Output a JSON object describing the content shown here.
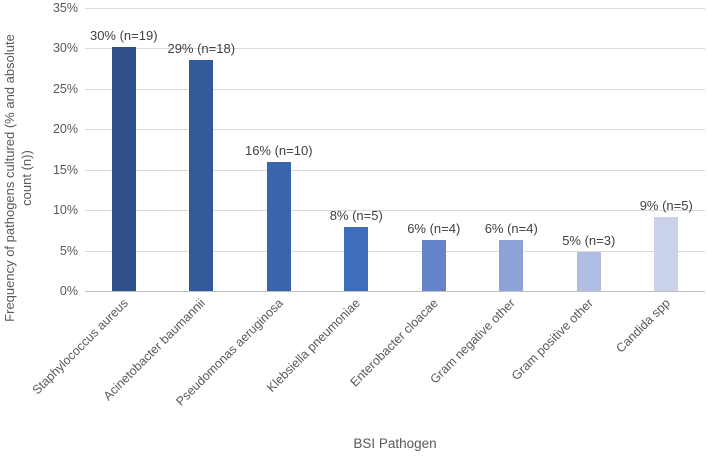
{
  "figure": {
    "y_axis_title_line1": "Frequency of pathogens cultured (% and absolute",
    "y_axis_title_line2": "count (n))",
    "x_axis_title": "BSI Pathogen"
  },
  "chart_data": {
    "type": "bar",
    "title": "",
    "xlabel": "BSI Pathogen",
    "ylabel": "Frequency of pathogens cultured (% and absolute count (n))",
    "ylim": [
      0,
      35
    ],
    "y_tick_interval": 5,
    "y_tick_labels": [
      "35%",
      "30%",
      "25%",
      "20%",
      "15%",
      "10%",
      "5%",
      "0%"
    ],
    "grid": "horizontal",
    "legend": "none",
    "categories": [
      "Staphylococcus aureus",
      "Acinetobacter baumannii",
      "Pseudomonas aeruginosa",
      "Klebsiella pneumoniae",
      "Enterobacter cloacae",
      "Gram negative other",
      "Gram positive other",
      "Candida spp"
    ],
    "values": [
      30.2,
      28.6,
      15.9,
      7.9,
      6.3,
      6.3,
      4.8,
      9.1
    ],
    "counts": [
      19,
      18,
      10,
      5,
      4,
      4,
      3,
      5
    ],
    "data_labels": [
      "30% (n=19)",
      "29% (n=18)",
      "16% (n=10)",
      "8% (n=5)",
      "6% (n=4)",
      "6% (n=4)",
      "5% (n=3)",
      "9% (n=5)"
    ],
    "bar_colors": [
      "#2e4f87",
      "#33599b",
      "#3a64ab",
      "#3f6dbd",
      "#6583ca",
      "#8fa2d8",
      "#b2bde3",
      "#c9d1eb"
    ],
    "gridline_color": "#d9d9d9",
    "axis_line_color": "#bfbfbf",
    "tick_label_color": "#595959",
    "data_label_color": "#404040"
  }
}
